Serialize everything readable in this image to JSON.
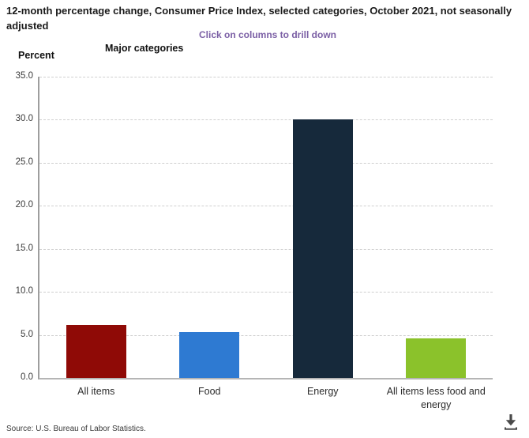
{
  "header": {
    "title": "12-month percentage change, Consumer Price Index, selected categories, October 2021, not seasonally adjusted",
    "drilldown_hint": "Click on columns to drill down"
  },
  "axes": {
    "y_title": "Percent",
    "x_title": "Major categories"
  },
  "footer": {
    "source": "Source: U.S. Bureau of Labor Statistics.",
    "download_icon": "download-icon"
  },
  "colors": {
    "hint_text": "#7b5fa5",
    "gridline": "#cfcfcf",
    "axis_line": "#9e9e9e",
    "tick_text": "#3a3a3a",
    "title_text": "#1a1a1a"
  },
  "chart_data": {
    "type": "bar",
    "title": "12-month percentage change, Consumer Price Index, selected categories, October 2021, not seasonally adjusted",
    "xlabel": "Major categories",
    "ylabel": "Percent",
    "categories": [
      "All items",
      "Food",
      "Energy",
      "All items less food and energy"
    ],
    "values": [
      6.2,
      5.3,
      30.0,
      4.6
    ],
    "bar_colors": [
      "#8F0A06",
      "#2E7AD2",
      "#16293B",
      "#8BC22B"
    ],
    "ylim": [
      0,
      35
    ],
    "ytick_step": 5,
    "ytick_decimals": 1,
    "grid": true,
    "legend": false
  }
}
